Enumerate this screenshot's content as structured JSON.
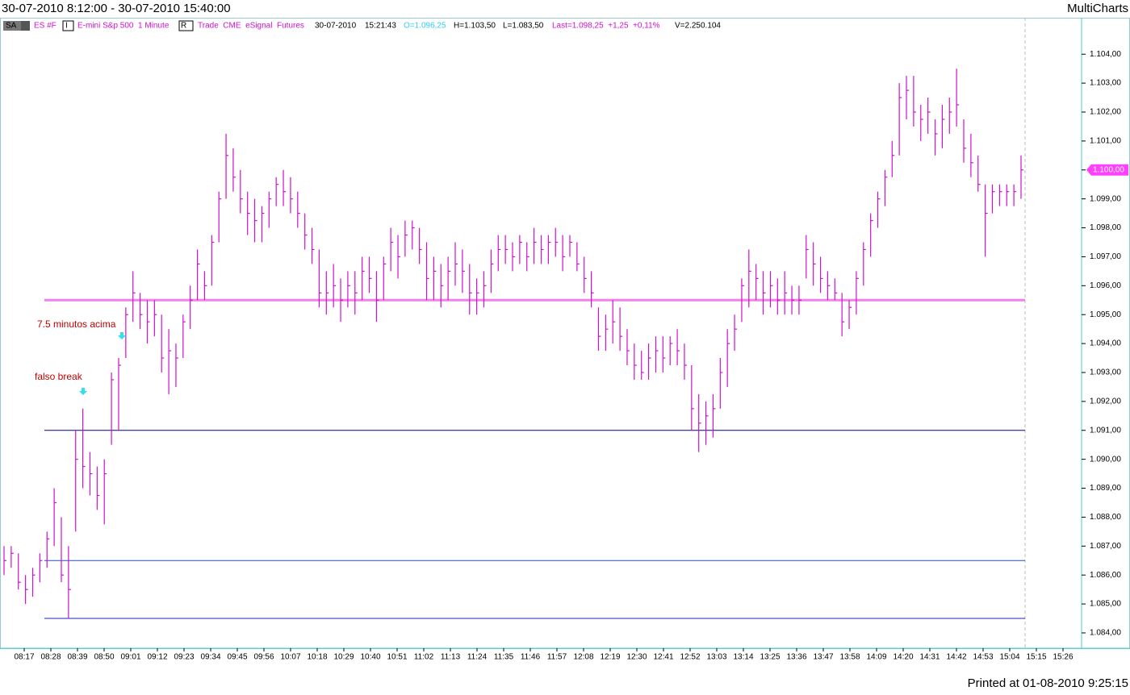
{
  "header": {
    "title": "30-07-2010 8:12:00 - 30-07-2010 15:40:00",
    "app": "MultiCharts"
  },
  "info": {
    "sa": "SA",
    "symbol": "ES #F",
    "i": "I",
    "description": "E-mini S&p 500  1 Minute",
    "r": "R",
    "source": "Trade  CME  eSignal  Futures",
    "date": "30-07-2010",
    "time": "15:21:43",
    "open": "O=1.096,25",
    "high": "H=1.103,50",
    "low": "L=1.083,50",
    "last": "Last=1.098,25  +1,25  +0,11%",
    "volume": "V=2.250.104"
  },
  "footer": "Printed at 01-08-2010 9:25:15",
  "chart_data": {
    "type": "hlc",
    "color": "#d010d0",
    "high": [
      1087,
      1087,
      1086.75,
      1086,
      1086.25,
      1086.75,
      1087.5,
      1089,
      1088,
      1087,
      1091,
      1091.75,
      1090.25,
      1089.75,
      1090,
      1093,
      1093.5,
      1095.25,
      1096.5,
      1095.75,
      1095.5,
      1095.5,
      1095,
      1094.5,
      1094,
      1095,
      1096,
      1097.25,
      1096.5,
      1097.75,
      1099.25,
      1101.25,
      1100.75,
      1100,
      1099.25,
      1099,
      1098.75,
      1099.25,
      1099.75,
      1100,
      1099.75,
      1099.25,
      1098.5,
      1098,
      1097.25,
      1096.5,
      1096.75,
      1096.25,
      1096.5,
      1096.5,
      1097,
      1097,
      1096.5,
      1097,
      1098,
      1097.75,
      1098.25,
      1098.25,
      1098,
      1097.5,
      1097,
      1096.75,
      1097,
      1097.5,
      1097.25,
      1096.75,
      1096.25,
      1096.5,
      1097.25,
      1097.75,
      1097.75,
      1097.5,
      1097.75,
      1097.5,
      1098,
      1097.75,
      1097.75,
      1098,
      1097.75,
      1097.75,
      1097.5,
      1097,
      1096.5,
      1095.25,
      1095,
      1095.5,
      1095.25,
      1094.5,
      1094,
      1093.75,
      1094,
      1094.25,
      1094.25,
      1094.25,
      1094.5,
      1094,
      1093.25,
      1092.25,
      1092,
      1092.25,
      1093.5,
      1094.5,
      1095,
      1096.25,
      1097.25,
      1096.75,
      1096.5,
      1096.5,
      1096.25,
      1096.5,
      1096,
      1096,
      1097.75,
      1097.5,
      1097,
      1096.5,
      1096.25,
      1095.75,
      1095.5,
      1096.5,
      1097.5,
      1098.5,
      1099.25,
      1100,
      1101,
      1103,
      1103.25,
      1103.25,
      1102.25,
      1102.5,
      1101.75,
      1102.25,
      1102.5,
      1103.5,
      1101.75,
      1101.25,
      1100.5,
      1099.5,
      1099.5,
      1099.5,
      1099.5,
      1099.5,
      1100.5
    ],
    "low": [
      1086,
      1086.25,
      1085.5,
      1085,
      1085.25,
      1085.75,
      1086.25,
      1087,
      1085.75,
      1084.5,
      1087.5,
      1089,
      1088.75,
      1088.25,
      1087.75,
      1090.5,
      1091,
      1093.5,
      1094.75,
      1094.5,
      1094,
      1094.25,
      1093,
      1092.25,
      1092.5,
      1093.5,
      1094.5,
      1095.5,
      1095.5,
      1096,
      1097.5,
      1099,
      1099.25,
      1098.5,
      1097.75,
      1097.5,
      1097.5,
      1098,
      1098.75,
      1098.75,
      1098.5,
      1098,
      1097.25,
      1096.75,
      1095.25,
      1095,
      1095.25,
      1094.75,
      1095.25,
      1095,
      1095.5,
      1095.75,
      1094.75,
      1095.5,
      1096.5,
      1096.25,
      1097,
      1097.25,
      1096.75,
      1095.5,
      1095.5,
      1095.25,
      1095.5,
      1096,
      1095.75,
      1095,
      1095,
      1095.25,
      1095.75,
      1096.5,
      1096.75,
      1096.5,
      1096.75,
      1096.5,
      1096.75,
      1096.75,
      1096.75,
      1097,
      1096.5,
      1097,
      1096.5,
      1095.75,
      1095.25,
      1093.75,
      1093.75,
      1094,
      1093.75,
      1093.25,
      1092.75,
      1092.75,
      1092.75,
      1093,
      1093,
      1093.25,
      1093.25,
      1092.75,
      1091,
      1090.25,
      1090.5,
      1090.75,
      1091.75,
      1092.5,
      1093.75,
      1094.75,
      1095.25,
      1095.5,
      1095,
      1095.25,
      1095,
      1095,
      1095,
      1095,
      1096.25,
      1096,
      1095.75,
      1095.5,
      1095.5,
      1094.25,
      1094.5,
      1095,
      1096,
      1097,
      1098,
      1098.75,
      1099.75,
      1100.5,
      1101.75,
      1101.5,
      1101,
      1101.25,
      1100.5,
      1100.75,
      1101.25,
      1101.5,
      1100.25,
      1099.75,
      1099.25,
      1097,
      1098.5,
      1098.75,
      1098.75,
      1098.75,
      1099
    ],
    "close": [
      1086.5,
      1086.75,
      1085.75,
      1085.5,
      1086,
      1086.5,
      1087.25,
      1088.5,
      1086,
      1085.5,
      1090,
      1089.75,
      1089.5,
      1088.75,
      1089.5,
      1092.75,
      1093.25,
      1095,
      1095.75,
      1095,
      1094.75,
      1095,
      1093.5,
      1093.75,
      1093.5,
      1094.75,
      1095.5,
      1096.75,
      1096,
      1097.5,
      1099,
      1100.5,
      1099.75,
      1099,
      1098.5,
      1098.25,
      1098.5,
      1099,
      1099.5,
      1099.25,
      1099,
      1098.5,
      1097.75,
      1097.25,
      1095.75,
      1095.75,
      1096,
      1095.5,
      1096,
      1095.75,
      1096.5,
      1096.25,
      1095.5,
      1096.75,
      1097.5,
      1097,
      1097.75,
      1098,
      1097.25,
      1096.25,
      1096.5,
      1096,
      1096.5,
      1096.75,
      1096.5,
      1095.75,
      1095.75,
      1096,
      1096.75,
      1097.25,
      1097.25,
      1097,
      1097.5,
      1097,
      1097.5,
      1097.25,
      1097.5,
      1097.5,
      1097,
      1097.5,
      1096.75,
      1096.25,
      1095.75,
      1094.25,
      1094.5,
      1094.75,
      1094.25,
      1093.75,
      1093.25,
      1093,
      1093.5,
      1093.75,
      1093.5,
      1094,
      1093.75,
      1093.25,
      1091.75,
      1091.25,
      1091.5,
      1091.75,
      1093,
      1094,
      1094.5,
      1096,
      1096.5,
      1096.25,
      1095.75,
      1096,
      1095.5,
      1095.75,
      1095.5,
      1095.5,
      1097.25,
      1096.75,
      1096.25,
      1096,
      1095.75,
      1094.75,
      1095.25,
      1096.25,
      1097.25,
      1098.25,
      1099,
      1099.75,
      1100.5,
      1102.5,
      1102.75,
      1102,
      1101.75,
      1102,
      1101.25,
      1101.75,
      1102,
      1102.25,
      1100.75,
      1100.25,
      1099.5,
      1098.5,
      1099.25,
      1099.25,
      1099.25,
      1099.25,
      1100
    ],
    "ylim": [
      1083.47,
      1105.26
    ],
    "yticks": [
      {
        "value": 1084,
        "label": "1.084,00"
      },
      {
        "value": 1085,
        "label": "1.085,00"
      },
      {
        "value": 1086,
        "label": "1.086,00"
      },
      {
        "value": 1087,
        "label": "1.087,00"
      },
      {
        "value": 1088,
        "label": "1.088,00"
      },
      {
        "value": 1089,
        "label": "1.089,00"
      },
      {
        "value": 1090,
        "label": "1.090,00"
      },
      {
        "value": 1091,
        "label": "1.091,00"
      },
      {
        "value": 1092,
        "label": "1.092,00"
      },
      {
        "value": 1093,
        "label": "1.093,00"
      },
      {
        "value": 1094,
        "label": "1.094,00"
      },
      {
        "value": 1095,
        "label": "1.095,00"
      },
      {
        "value": 1096,
        "label": "1.096,00"
      },
      {
        "value": 1097,
        "label": "1.097,00"
      },
      {
        "value": 1098,
        "label": "1.098,00"
      },
      {
        "value": 1099,
        "label": "1.099,00"
      },
      {
        "value": 1100,
        "label": "1.100,00"
      },
      {
        "value": 1101,
        "label": "1.101,00"
      },
      {
        "value": 1102,
        "label": "1.102,00"
      },
      {
        "value": 1103,
        "label": "1.103,00"
      },
      {
        "value": 1104,
        "label": "1.104,00"
      }
    ],
    "xticks": [
      "08:17",
      "08:28",
      "08:39",
      "08:50",
      "09:01",
      "09:12",
      "09:23",
      "09:34",
      "09:45",
      "09:56",
      "10:07",
      "10:18",
      "10:29",
      "10:40",
      "10:51",
      "11:02",
      "11:13",
      "11:24",
      "11:35",
      "11:46",
      "11:57",
      "12:08",
      "12:19",
      "12:30",
      "12:41",
      "12:52",
      "13:03",
      "13:14",
      "13:25",
      "13:36",
      "13:47",
      "13:58",
      "14:09",
      "14:20",
      "14:31",
      "14:42",
      "14:53",
      "15:04",
      "15:15",
      "15:26"
    ],
    "levels": [
      {
        "value": 1095.5,
        "color": "#f080f0"
      },
      {
        "value": 1091,
        "color": "#000080"
      },
      {
        "value": 1086.5,
        "color": "#2050c0"
      },
      {
        "value": 1084.5,
        "color": "#2020c0"
      }
    ],
    "last_marker": {
      "value": 1100,
      "label": "1.100,00",
      "color": "#ff40ff"
    },
    "annotations": [
      {
        "text": "7.5 minutos acima",
        "color": "#c00000"
      },
      {
        "text": "falso break",
        "color": "#c00000"
      }
    ]
  }
}
